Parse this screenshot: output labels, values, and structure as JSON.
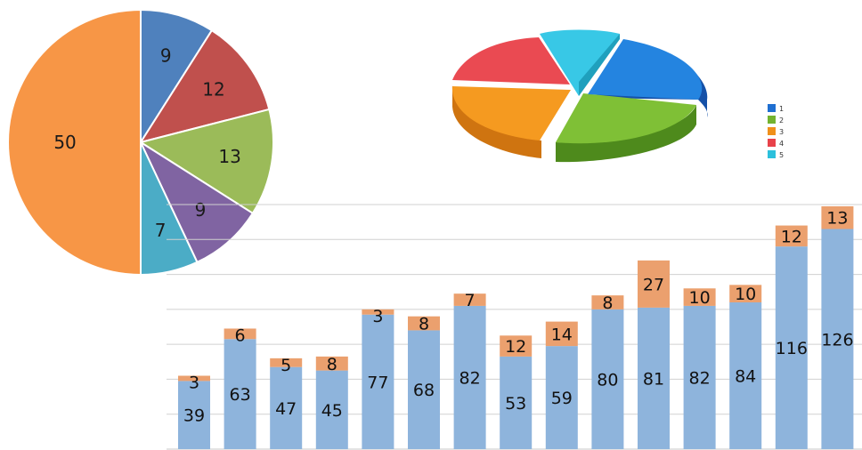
{
  "chart_data": [
    {
      "type": "pie",
      "slices": [
        {
          "label": "9",
          "value": 9,
          "color": "#4f81bd"
        },
        {
          "label": "12",
          "value": 12,
          "color": "#c0504d"
        },
        {
          "label": "13",
          "value": 13,
          "color": "#9bbb59"
        },
        {
          "label": "9",
          "value": 9,
          "color": "#8064a2"
        },
        {
          "label": "7",
          "value": 7,
          "color": "#4bacc6"
        },
        {
          "label": "50",
          "value": 50,
          "color": "#f79646"
        }
      ],
      "start": "12 o'clock",
      "direction": "clockwise"
    },
    {
      "type": "pie",
      "style": "3d-exploded",
      "legend": [
        "1",
        "2",
        "3",
        "4",
        "5"
      ],
      "legend_position": "right",
      "colors": [
        "#1f6fd1",
        "#74b330",
        "#f0901a",
        "#e8424a",
        "#2cc0dc"
      ]
    },
    {
      "type": "bar",
      "stacked": true,
      "grid": true,
      "ylim": [
        0,
        140
      ],
      "categories": [
        "",
        "",
        "",
        "",
        "",
        "",
        "",
        "",
        "",
        "",
        "",
        "",
        "",
        "",
        ""
      ],
      "series": [
        {
          "values": [
            39,
            63,
            47,
            45,
            77,
            68,
            82,
            53,
            59,
            80,
            81,
            82,
            84,
            116,
            126
          ],
          "color": "#8eb4dc"
        },
        {
          "values": [
            3,
            6,
            5,
            8,
            3,
            8,
            7,
            12,
            14,
            8,
            27,
            10,
            10,
            12,
            13
          ],
          "color": "#eba06e"
        }
      ]
    }
  ]
}
